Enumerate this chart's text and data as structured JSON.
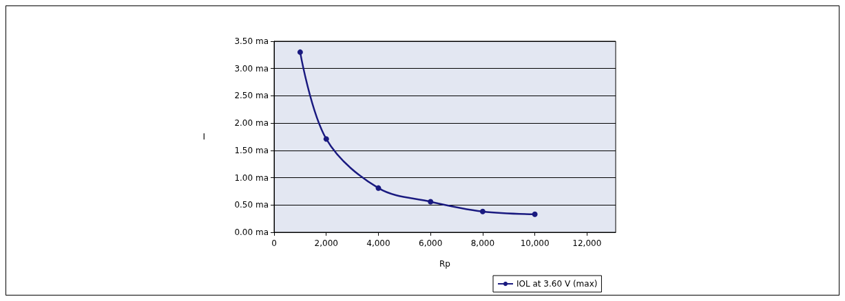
{
  "chart_data": {
    "type": "line",
    "xlabel": "Rp",
    "ylabel": "I",
    "x": [
      1000,
      2000,
      4000,
      6000,
      8000,
      10000
    ],
    "series": [
      {
        "name": "IOL at 3.60 V (max)",
        "color": "#1a1a80",
        "values": [
          3.3,
          1.71,
          0.81,
          0.56,
          0.38,
          0.33
        ]
      }
    ],
    "xlim": [
      0,
      13100
    ],
    "xticks": [
      0,
      {
        "value": 2000,
        "label": "2,000"
      },
      {
        "value": 4000,
        "label": "4,000"
      },
      {
        "value": 6000,
        "label": "6,000"
      },
      {
        "value": 8000,
        "label": "8,000"
      },
      {
        "value": 10000,
        "label": "10,000"
      },
      {
        "value": 12000,
        "label": "12,000"
      }
    ],
    "ylim": [
      0,
      3.5
    ],
    "yticks": [
      {
        "value": 0,
        "label": "0.00 ma"
      },
      {
        "value": 0.5,
        "label": "0.50 ma"
      },
      {
        "value": 1,
        "label": "1.00 ma"
      },
      {
        "value": 1.5,
        "label": "1.50 ma"
      },
      {
        "value": 2,
        "label": "2.00 ma"
      },
      {
        "value": 2.5,
        "label": "2.50 ma"
      },
      {
        "value": 3,
        "label": "3.00 ma"
      },
      {
        "value": 3.5,
        "label": "3.50 ma"
      }
    ],
    "grid": "y",
    "legend": "bottom",
    "marker": "circle",
    "line_style": "solid"
  }
}
